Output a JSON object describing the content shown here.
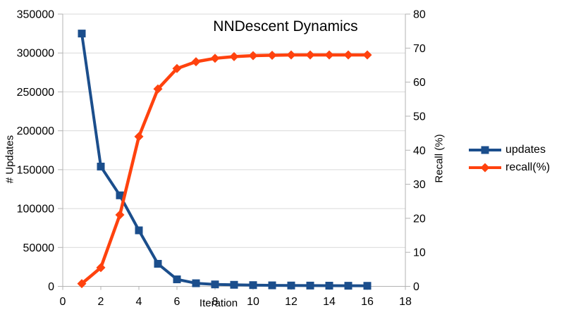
{
  "colors": {
    "updates": "#1b4e8c",
    "recall": "#ff420e",
    "gridline": "#d9d9d9",
    "axis": "#b3b3b3",
    "text": "#000000",
    "background": "#ffffff"
  },
  "chart_data": {
    "type": "line",
    "title": "NNDescent Dynamics",
    "xlabel": "Iteration",
    "ylabel_left": "# Updates",
    "ylabel_right": "Recall (%)",
    "xlim": [
      0,
      18
    ],
    "ylim_left": [
      0,
      350000
    ],
    "ylim_right": [
      0,
      80
    ],
    "x_ticks": [
      0,
      2,
      4,
      6,
      8,
      10,
      12,
      14,
      16,
      18
    ],
    "y_ticks_left": [
      0,
      50000,
      100000,
      150000,
      200000,
      250000,
      300000,
      350000
    ],
    "y_ticks_right": [
      0,
      10,
      20,
      30,
      40,
      50,
      60,
      70,
      80
    ],
    "grid": "horizontal",
    "legend_position": "right",
    "x": [
      1,
      2,
      3,
      4,
      5,
      6,
      7,
      8,
      9,
      10,
      11,
      12,
      13,
      14,
      15,
      16
    ],
    "series": [
      {
        "name": "updates",
        "axis": "left",
        "color": "#1b4e8c",
        "marker": "square",
        "values": [
          325000,
          154000,
          117000,
          72000,
          29000,
          9000,
          4000,
          2500,
          2000,
          1600,
          1300,
          1100,
          1000,
          900,
          800,
          700
        ]
      },
      {
        "name": "recall(%)",
        "axis": "right",
        "color": "#ff420e",
        "marker": "diamond",
        "values": [
          0.8,
          5.5,
          21,
          44,
          58,
          64,
          66,
          67,
          67.5,
          67.8,
          67.9,
          68,
          68,
          68,
          68,
          68
        ]
      }
    ]
  }
}
